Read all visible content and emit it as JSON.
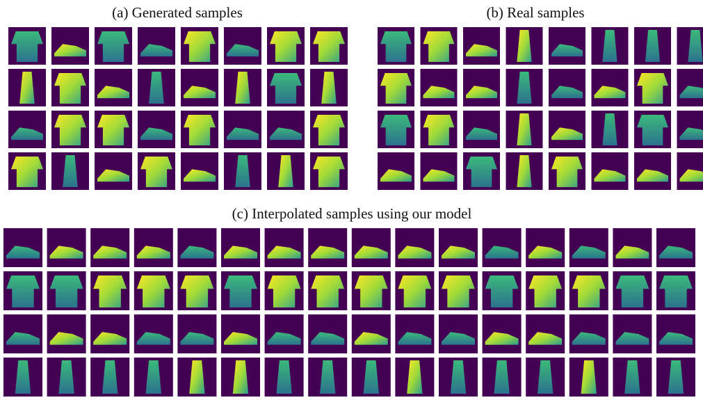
{
  "panels": [
    {
      "caption": "(a) Generated samples"
    },
    {
      "caption": "(b) Real samples"
    },
    {
      "caption": "(c) Interpolated samples using our model"
    }
  ]
}
